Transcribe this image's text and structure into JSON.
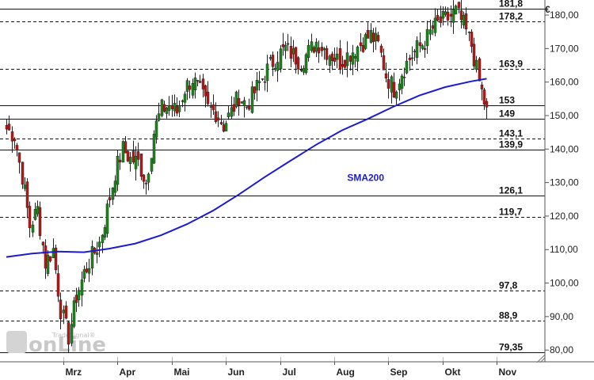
{
  "chart_data": {
    "type": "candlestick",
    "title": "",
    "unit_label": "€",
    "ylim": [
      76.5,
      184.5
    ],
    "y_ticks": [
      {
        "value": 80,
        "label": "80,00"
      },
      {
        "value": 90,
        "label": "90,00"
      },
      {
        "value": 100,
        "label": "100,00"
      },
      {
        "value": 110,
        "label": "110,00"
      },
      {
        "value": 120,
        "label": "120,00"
      },
      {
        "value": 130,
        "label": "130,00"
      },
      {
        "value": 140,
        "label": "140,00"
      },
      {
        "value": 150,
        "label": "150,00"
      },
      {
        "value": 160,
        "label": "160,00"
      },
      {
        "value": 170,
        "label": "170,00"
      },
      {
        "value": 180,
        "label": "180,00"
      }
    ],
    "x_ticks": [
      {
        "index": 22,
        "label": "Mrz"
      },
      {
        "index": 43,
        "label": "Apr"
      },
      {
        "index": 64,
        "label": "Mai"
      },
      {
        "index": 85,
        "label": "Jun"
      },
      {
        "index": 106,
        "label": "Jul"
      },
      {
        "index": 127,
        "label": "Aug"
      },
      {
        "index": 148,
        "label": "Sep"
      },
      {
        "index": 169,
        "label": "Okt"
      },
      {
        "index": 190,
        "label": "Nov"
      }
    ],
    "horizontal_levels": [
      {
        "value": 181.8,
        "label": "181,8",
        "style": "solid"
      },
      {
        "value": 178.2,
        "label": "178,2",
        "style": "dashed"
      },
      {
        "value": 163.9,
        "label": "163,9",
        "style": "dashed"
      },
      {
        "value": 153,
        "label": "153",
        "style": "solid"
      },
      {
        "value": 149,
        "label": "149",
        "style": "solid"
      },
      {
        "value": 143.1,
        "label": "143,1",
        "style": "dashed"
      },
      {
        "value": 139.9,
        "label": "139,9",
        "style": "solid"
      },
      {
        "value": 126.1,
        "label": "126,1",
        "style": "solid"
      },
      {
        "value": 119.7,
        "label": "119,7",
        "style": "dashed"
      },
      {
        "value": 97.8,
        "label": "97,8",
        "style": "dashed"
      },
      {
        "value": 88.9,
        "label": "88,9",
        "style": "dashed"
      },
      {
        "value": 79.35,
        "label": "79,35",
        "style": "solid"
      }
    ],
    "series": [
      {
        "name": "SMA200",
        "color": "#1b1bd0",
        "points": [
          [
            0,
            107.8
          ],
          [
            10,
            108.8
          ],
          [
            20,
            109.4
          ],
          [
            30,
            109.2
          ],
          [
            40,
            110.3
          ],
          [
            50,
            111.8
          ],
          [
            60,
            114.3
          ],
          [
            70,
            117.6
          ],
          [
            80,
            121.6
          ],
          [
            90,
            126.4
          ],
          [
            100,
            131.6
          ],
          [
            110,
            136.5
          ],
          [
            120,
            141.3
          ],
          [
            130,
            145.6
          ],
          [
            140,
            149.0
          ],
          [
            150,
            152.7
          ],
          [
            160,
            156.0
          ],
          [
            170,
            158.5
          ],
          [
            180,
            160.2
          ],
          [
            186,
            161.0
          ]
        ]
      }
    ],
    "candles_anchor": [
      [
        0,
        146
      ],
      [
        3,
        144
      ],
      [
        6,
        132
      ],
      [
        9,
        117
      ],
      [
        12,
        122
      ],
      [
        15,
        106
      ],
      [
        18,
        110
      ],
      [
        21,
        92
      ],
      [
        24,
        84
      ],
      [
        27,
        96
      ],
      [
        30,
        103
      ],
      [
        33,
        108
      ],
      [
        36,
        112
      ],
      [
        39,
        122
      ],
      [
        42,
        133
      ],
      [
        45,
        140
      ],
      [
        48,
        137
      ],
      [
        51,
        136
      ],
      [
        54,
        130
      ],
      [
        57,
        145
      ],
      [
        60,
        152
      ],
      [
        63,
        153
      ],
      [
        66,
        151
      ],
      [
        69,
        158
      ],
      [
        72,
        161
      ],
      [
        75,
        157
      ],
      [
        78,
        152
      ],
      [
        81,
        151
      ],
      [
        84,
        147
      ],
      [
        87,
        151
      ],
      [
        90,
        156
      ],
      [
        93,
        153
      ],
      [
        96,
        157
      ],
      [
        99,
        161
      ],
      [
        102,
        165
      ],
      [
        105,
        168
      ],
      [
        108,
        170
      ],
      [
        111,
        168
      ],
      [
        114,
        166
      ],
      [
        117,
        169
      ],
      [
        120,
        172
      ],
      [
        123,
        170
      ],
      [
        126,
        168
      ],
      [
        129,
        166
      ],
      [
        132,
        168
      ],
      [
        135,
        170
      ],
      [
        138,
        172
      ],
      [
        141,
        174
      ],
      [
        144,
        171
      ],
      [
        147,
        162
      ],
      [
        150,
        158
      ],
      [
        153,
        163
      ],
      [
        156,
        167
      ],
      [
        159,
        170
      ],
      [
        162,
        172
      ],
      [
        165,
        176
      ],
      [
        168,
        178
      ],
      [
        171,
        179
      ],
      [
        174,
        181
      ],
      [
        177,
        177
      ],
      [
        180,
        171
      ],
      [
        183,
        160
      ],
      [
        186,
        151
      ]
    ],
    "last_candle_index": 186,
    "sma_label": "SMA200",
    "sma_label_anchor": {
      "index": 132,
      "value": 130.5
    }
  },
  "watermark": {
    "text": "onLine",
    "small_text": "TradeSignal®",
    "color": "#c8c8c8"
  }
}
